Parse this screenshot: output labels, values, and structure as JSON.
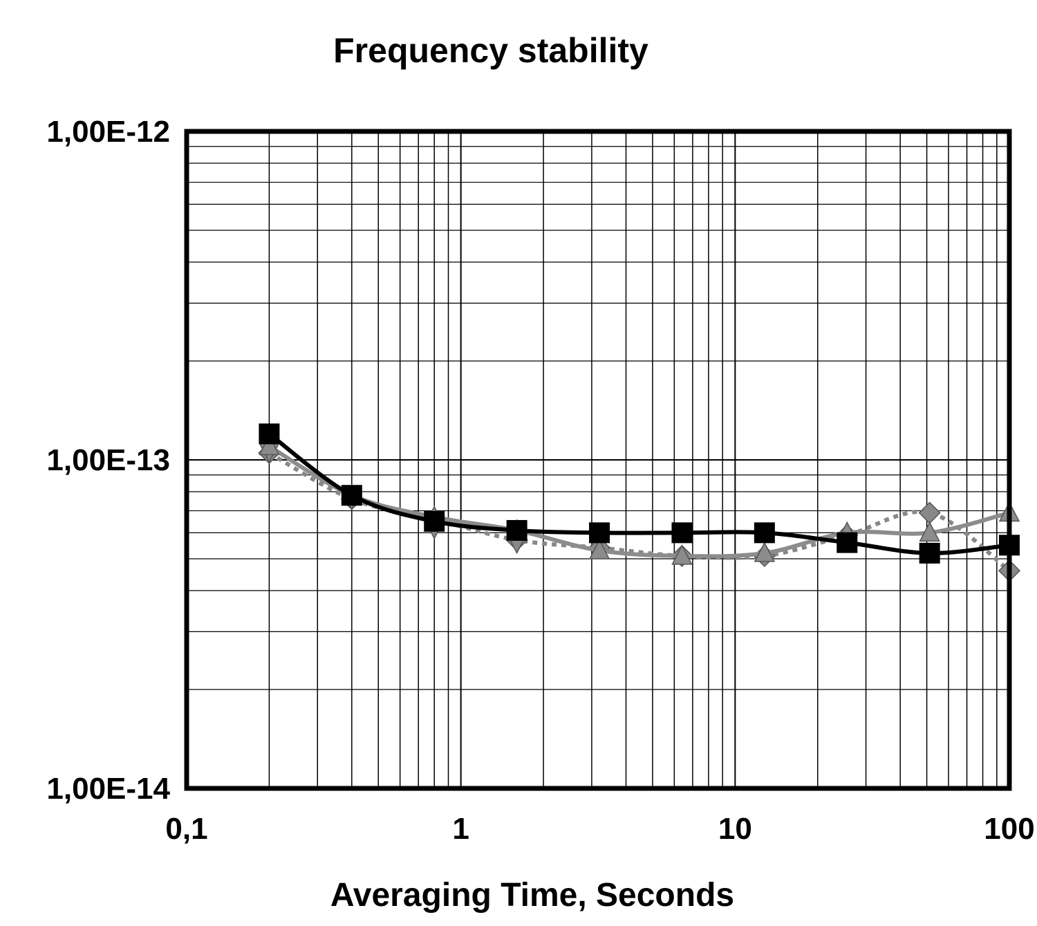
{
  "chart_data": {
    "type": "line",
    "title": "Frequency stability",
    "xlabel": "Averaging Time, Seconds",
    "ylabel": "",
    "x_scale": "log",
    "y_scale": "log",
    "xlim": [
      0.1,
      100
    ],
    "ylim": [
      1e-14,
      1e-12
    ],
    "x_ticks": [
      {
        "value": 0.1,
        "label": "0,1"
      },
      {
        "value": 1,
        "label": "1"
      },
      {
        "value": 10,
        "label": "10"
      },
      {
        "value": 100,
        "label": "100"
      }
    ],
    "y_ticks": [
      {
        "value": 1e-12,
        "label": "1,00E-12"
      },
      {
        "value": 1e-13,
        "label": "1,00E-13"
      },
      {
        "value": 1e-14,
        "label": "1,00E-14"
      }
    ],
    "grid": true,
    "legend": "none",
    "series": [
      {
        "marker": "diamond",
        "line": "dotted",
        "color": "#888888",
        "x": [
          0.2,
          0.4,
          0.8,
          1.6,
          3.2,
          6.4,
          12.8,
          25.6,
          51.2,
          100
        ],
        "y": [
          1.05e-13,
          7.6e-14,
          6.6e-14,
          5.7e-14,
          5.4e-14,
          5.1e-14,
          5.1e-14,
          5.9e-14,
          6.9e-14,
          4.6e-14
        ]
      },
      {
        "marker": "triangle-down",
        "line": "none",
        "color": "#888888",
        "x": [
          0.2,
          0.4,
          0.8,
          1.6
        ],
        "y": [
          1.06e-13,
          7.6e-14,
          6.2e-14,
          5.6e-14
        ]
      },
      {
        "marker": "triangle",
        "line": "solid",
        "color": "#8c8c8c",
        "x": [
          0.2,
          0.4,
          0.8,
          1.6,
          3.2,
          6.4,
          12.8,
          25.6,
          51.2,
          100
        ],
        "y": [
          1.1e-13,
          7.8e-14,
          6.7e-14,
          6.1e-14,
          5.3e-14,
          5.1e-14,
          5.2e-14,
          6e-14,
          6e-14,
          6.9e-14
        ]
      },
      {
        "marker": "square",
        "line": "solid",
        "color": "#000000",
        "x": [
          0.2,
          0.4,
          0.8,
          1.6,
          3.2,
          6.4,
          12.8,
          25.6,
          51.2,
          100
        ],
        "y": [
          1.2e-13,
          7.8e-14,
          6.5e-14,
          6.1e-14,
          6e-14,
          6e-14,
          6e-14,
          5.6e-14,
          5.2e-14,
          5.5e-14
        ]
      }
    ]
  }
}
